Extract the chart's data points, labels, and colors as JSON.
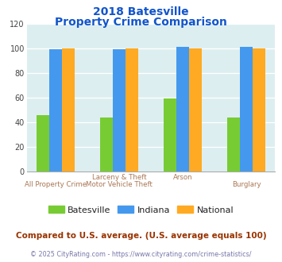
{
  "title_line1": "2018 Batesville",
  "title_line2": "Property Crime Comparison",
  "series": {
    "Batesville": [
      46,
      44,
      59,
      44
    ],
    "Indiana": [
      99,
      99,
      101,
      101
    ],
    "National": [
      100,
      100,
      100,
      100
    ]
  },
  "colors": {
    "Batesville": "#77cc33",
    "Indiana": "#4499ee",
    "National": "#ffaa22"
  },
  "ylim": [
    0,
    120
  ],
  "yticks": [
    0,
    20,
    40,
    60,
    80,
    100,
    120
  ],
  "plot_bg": "#ddeef0",
  "title_color": "#1155cc",
  "xlabel_color": "#aa7755",
  "x_top_labels": [
    "",
    "Larceny & Theft",
    "Arson",
    ""
  ],
  "x_bottom_labels": [
    "All Property Crime",
    "Motor Vehicle Theft",
    "",
    "Burglary"
  ],
  "legend_labels": [
    "Batesville",
    "Indiana",
    "National"
  ],
  "footer_note": "Compared to U.S. average. (U.S. average equals 100)",
  "footer_credit": "© 2025 CityRating.com - https://www.cityrating.com/crime-statistics/",
  "footer_note_color": "#993300",
  "footer_credit_color": "#7777aa"
}
